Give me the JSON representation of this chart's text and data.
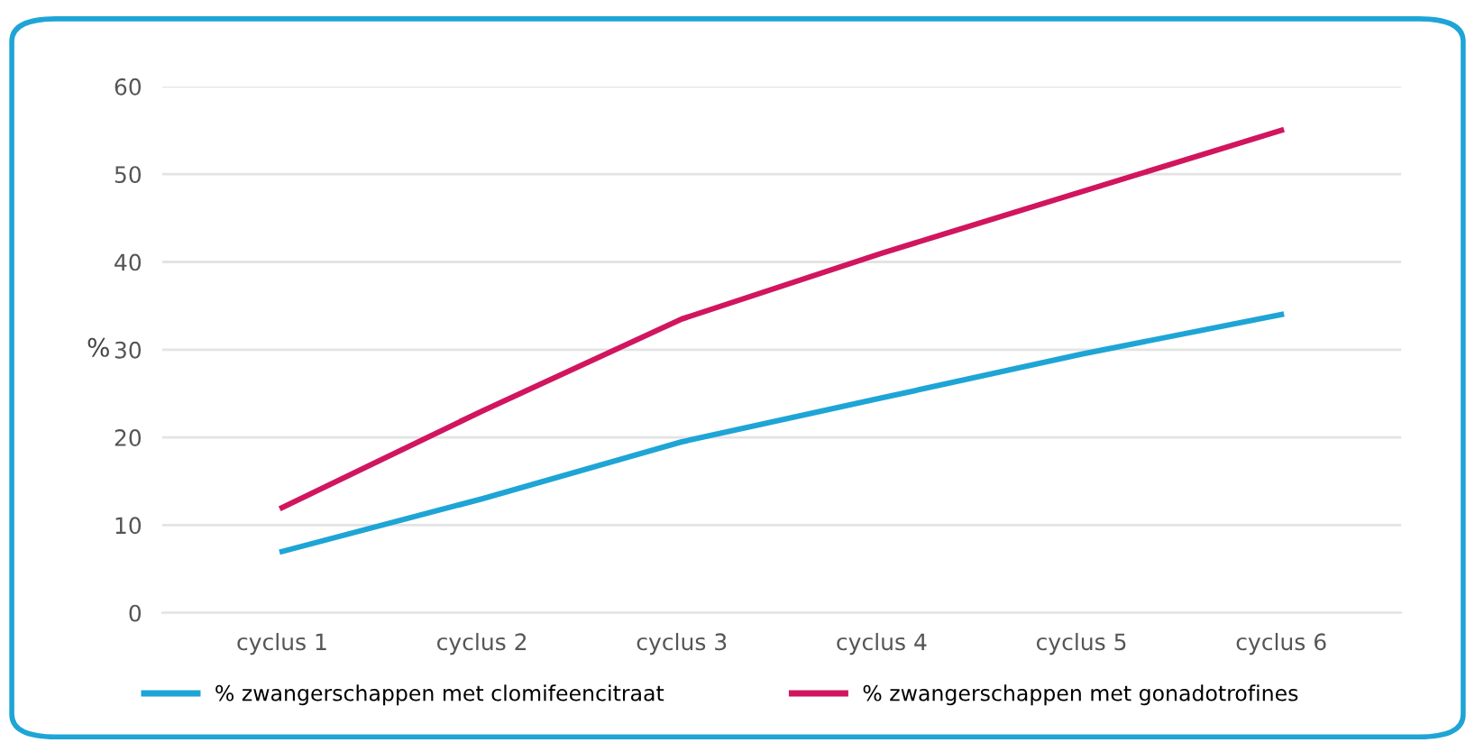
{
  "chart_data": {
    "type": "line",
    "ylabel": "%",
    "categories": [
      "cyclus 1",
      "cyclus 2",
      "cyclus 3",
      "cyclus 4",
      "cyclus 5",
      "cyclus 6"
    ],
    "series": [
      {
        "name": "% zwangerschappen met clomifeencitraat",
        "color": "#1ea5d6",
        "values": [
          7,
          13,
          19.5,
          24.5,
          29.5,
          34
        ]
      },
      {
        "name": "% zwangerschappen met gonadotrofines",
        "color": "#d1155f",
        "values": [
          12,
          23,
          33.5,
          41,
          48,
          55
        ]
      }
    ],
    "ylim": [
      0,
      60
    ],
    "yticks": [
      0,
      10,
      20,
      30,
      40,
      50,
      60
    ],
    "grid": "y",
    "legend": "bottom",
    "marker": "none",
    "line_style": "solid"
  }
}
